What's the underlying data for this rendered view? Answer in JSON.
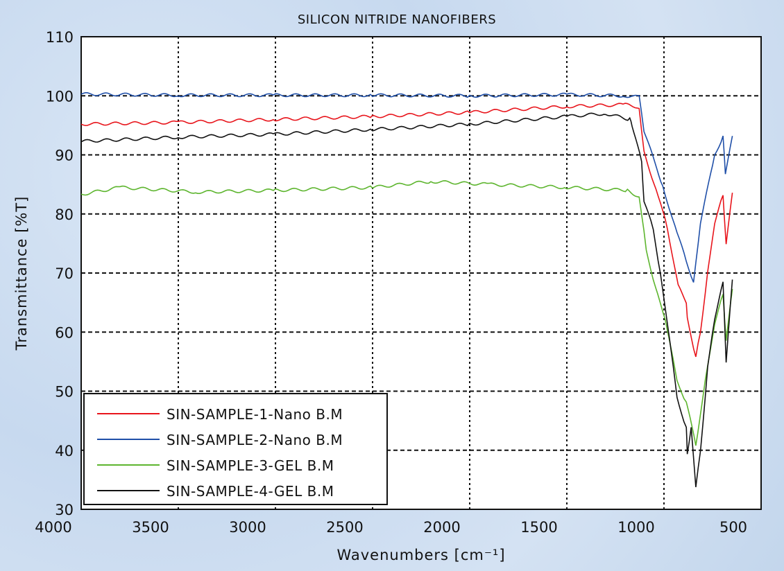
{
  "chart_data": {
    "type": "line",
    "title": "SILICON NITRIDE NANOFIBERS",
    "xlabel": "Wavenumbers [cm⁻¹]",
    "ylabel": "Transmittance [%T]",
    "xlim": [
      4000,
      500
    ],
    "ylim": [
      30,
      110
    ],
    "x_reversed": true,
    "grid": true,
    "legend_position": "bottom-left",
    "xticks": [
      4000,
      3500,
      3000,
      2500,
      2000,
      1500,
      1000,
      500
    ],
    "yticks": [
      30,
      40,
      50,
      60,
      70,
      80,
      90,
      100,
      110
    ],
    "series": [
      {
        "name": "SIN-SAMPLE-1-Nano B.M",
        "color": "#e8141b",
        "x": [
          4000,
          3500,
          3000,
          2500,
          2000,
          1500,
          1200,
          1128,
          1103,
          1030,
          982,
          927,
          885,
          880,
          836,
          812,
          775,
          739,
          696,
          680,
          648
        ],
        "y": [
          95.2,
          95.5,
          96,
          96.5,
          97.2,
          98.2,
          98.5,
          98.1,
          90.5,
          83,
          77.6,
          67.8,
          65.1,
          62.4,
          55.7,
          60.2,
          70,
          78.5,
          83.2,
          74.7,
          83.6
        ]
      },
      {
        "name": "SIN-SAMPLE-2-Nano B.M",
        "color": "#1f4fa8",
        "x": [
          4000,
          3500,
          3000,
          2500,
          2000,
          1500,
          1200,
          1128,
          1103,
          1006,
          933,
          885,
          848,
          812,
          739,
          696,
          684,
          648
        ],
        "y": [
          100.3,
          100.1,
          100.1,
          100.1,
          100,
          100.2,
          100,
          99.8,
          94.1,
          84.7,
          76.7,
          72.2,
          68.2,
          78.5,
          90.1,
          93,
          87,
          93.2
        ]
      },
      {
        "name": "SIN-SAMPLE-3-GEL B.M",
        "color": "#5db52e",
        "x": [
          4000,
          3800,
          3400,
          3000,
          2500,
          2200,
          1900,
          1500,
          1188,
          1128,
          1091,
          1043,
          994,
          933,
          885,
          836,
          787,
          739,
          696,
          680,
          648
        ],
        "y": [
          83.3,
          84.5,
          83.7,
          84,
          84.5,
          85.5,
          85,
          84.5,
          84,
          82.9,
          74,
          67.3,
          62.4,
          51.7,
          48.1,
          41,
          51.7,
          61.5,
          66.4,
          58.4,
          67.3
        ]
      },
      {
        "name": "SIN-SAMPLE-4-GEL B.M",
        "color": "#111111",
        "x": [
          4000,
          3500,
          3000,
          2500,
          2000,
          1500,
          1300,
          1176,
          1164,
          1115,
          1103,
          1055,
          1018,
          982,
          933,
          885,
          880,
          860,
          836,
          812,
          775,
          739,
          696,
          680,
          648
        ],
        "y": [
          92.3,
          93,
          93.5,
          94.3,
          95.2,
          96.5,
          97,
          96,
          95,
          88.8,
          82,
          77.6,
          69.6,
          61.5,
          49,
          43.7,
          39.6,
          43.7,
          33.8,
          40,
          53.9,
          62.4,
          68.4,
          54.8,
          68.9
        ]
      }
    ]
  }
}
